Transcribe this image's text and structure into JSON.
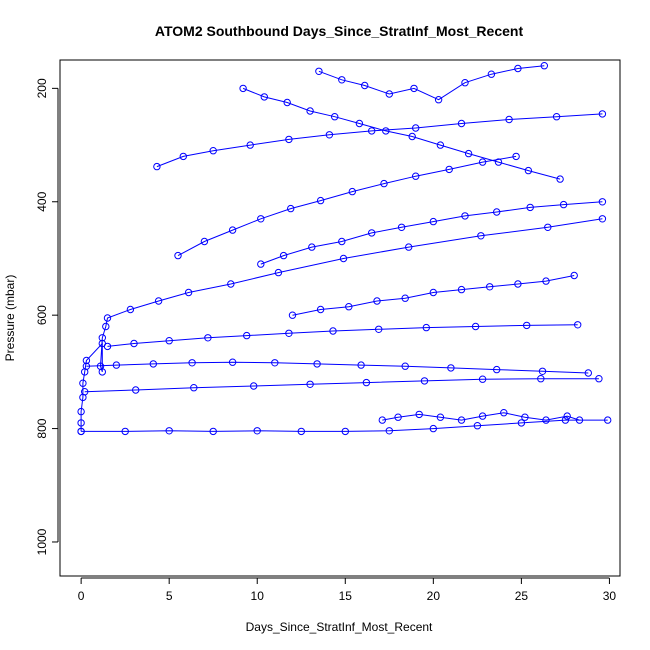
{
  "chart_data": {
    "type": "line",
    "title": "ATOM2 Southbound Days_Since_StratInf_Most_Recent",
    "xlabel": "Days_Since_StratInf_Most_Recent",
    "ylabel": "Pressure (mbar)",
    "xlim": [
      -1.2,
      30.6
    ],
    "ylim": [
      1060,
      150
    ],
    "y_reversed": true,
    "x_ticks": [
      0,
      5,
      10,
      15,
      20,
      25,
      30
    ],
    "y_ticks": [
      200,
      400,
      600,
      800,
      1000
    ],
    "grid": false,
    "legend": "none",
    "series_color": "#0000ff",
    "marker": "open-circle",
    "series": [
      {
        "x": [
          0.0,
          0.0,
          0.0,
          0.1,
          0.1,
          0.2,
          0.3,
          1.2,
          1.2,
          1.1,
          1.2,
          1.4,
          1.5,
          2.8,
          4.4,
          6.1,
          8.5,
          11.2,
          14.9,
          18.6,
          22.7,
          26.5,
          29.6
        ],
        "y": [
          805,
          790,
          770,
          745,
          720,
          700,
          680,
          650,
          700,
          690,
          640,
          620,
          605,
          590,
          575,
          560,
          545,
          525,
          500,
          480,
          460,
          445,
          430
        ]
      },
      {
        "x": [
          0.0,
          2.5,
          5.0,
          7.5,
          10.0,
          12.5,
          15.0,
          17.5,
          20.0,
          22.5,
          25.0,
          27.5,
          29.9
        ],
        "y": [
          805,
          805,
          804,
          805,
          804,
          805,
          805,
          804,
          800,
          795,
          790,
          785,
          785
        ]
      },
      {
        "x": [
          0.2,
          3.1,
          6.4,
          9.8,
          13.0,
          16.2,
          19.5,
          22.8,
          26.1,
          29.4
        ],
        "y": [
          735,
          732,
          728,
          725,
          722,
          719,
          716,
          713,
          712,
          712
        ]
      },
      {
        "x": [
          0.3,
          2.0,
          4.1,
          6.3,
          8.6,
          11.0,
          13.4,
          15.9,
          18.4,
          21.0,
          23.6,
          26.2,
          28.8
        ],
        "y": [
          690,
          688,
          686,
          684,
          683,
          684,
          686,
          688,
          690,
          693,
          696,
          699,
          702
        ]
      },
      {
        "x": [
          1.5,
          3.0,
          5.0,
          7.2,
          9.4,
          11.8,
          14.3,
          16.9,
          19.6,
          22.4,
          25.3,
          28.2
        ],
        "y": [
          655,
          650,
          645,
          640,
          636,
          632,
          628,
          625,
          622,
          620,
          618,
          617
        ]
      },
      {
        "x": [
          4.3,
          5.8,
          7.5,
          9.6,
          11.8,
          14.1,
          16.5,
          19.0,
          21.6,
          24.3,
          27.0,
          29.6
        ],
        "y": [
          338,
          320,
          310,
          300,
          290,
          282,
          275,
          270,
          262,
          255,
          250,
          245
        ]
      },
      {
        "x": [
          9.2,
          10.4,
          11.7,
          13.0,
          14.4,
          15.8,
          17.3,
          18.8,
          20.4,
          22.0,
          23.7,
          25.4,
          27.2
        ],
        "y": [
          200,
          215,
          225,
          240,
          250,
          262,
          275,
          285,
          300,
          315,
          330,
          345,
          360
        ]
      },
      {
        "x": [
          10.2,
          11.5,
          13.1,
          14.8,
          16.5,
          18.2,
          20.0,
          21.8,
          23.6,
          25.5,
          27.4,
          29.6
        ],
        "y": [
          510,
          495,
          480,
          470,
          455,
          445,
          435,
          425,
          418,
          410,
          405,
          400
        ]
      },
      {
        "x": [
          17.1,
          18.0,
          19.2,
          20.4,
          21.6,
          22.8,
          24.0,
          25.2,
          26.4,
          27.6,
          28.3
        ],
        "y": [
          785,
          780,
          775,
          780,
          785,
          778,
          772,
          780,
          785,
          778,
          785
        ]
      },
      {
        "x": [
          12.0,
          13.6,
          15.2,
          16.8,
          18.4,
          20.0,
          21.6,
          23.2,
          24.8,
          26.4,
          28.0
        ],
        "y": [
          600,
          590,
          585,
          575,
          570,
          560,
          555,
          550,
          545,
          540,
          530
        ]
      },
      {
        "x": [
          5.5,
          7.0,
          8.6,
          10.2,
          11.9,
          13.6,
          15.4,
          17.2,
          19.0,
          20.9,
          22.8,
          24.7
        ],
        "y": [
          495,
          470,
          450,
          430,
          412,
          398,
          382,
          368,
          355,
          343,
          330,
          320
        ]
      },
      {
        "x": [
          13.5,
          14.8,
          16.1,
          17.5,
          18.9,
          20.3,
          21.8,
          23.3,
          24.8,
          26.3
        ],
        "y": [
          170,
          185,
          195,
          210,
          200,
          220,
          190,
          175,
          165,
          160
        ]
      }
    ]
  }
}
